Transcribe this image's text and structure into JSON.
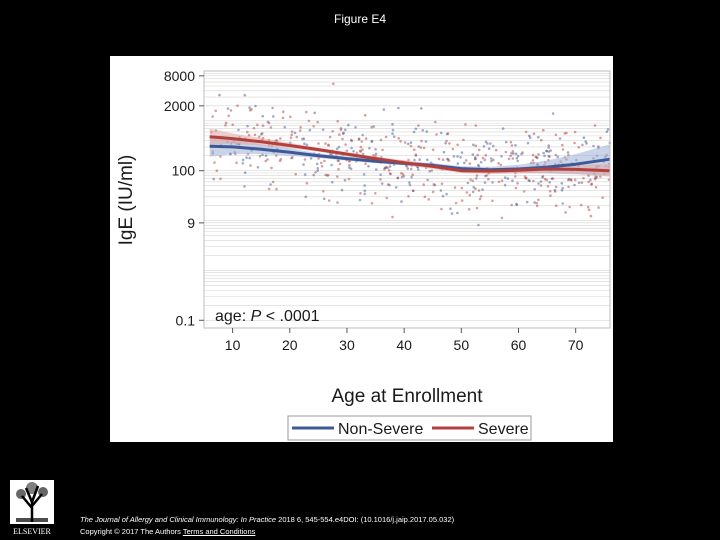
{
  "slide": {
    "title": "Figure E4",
    "citation_journal": "The Journal of Allergy and Clinical Immunology: In Practice",
    "citation_rest": " 2018 6, 545-554.e4DOI: (10.1016/j.jaip.2017.05.032)",
    "copyright": "Copyright © 2017 The Authors",
    "terms": "Terms and Conditions",
    "logo_text": "ELSEVIER"
  },
  "colors": {
    "non_severe": "#3d5a98",
    "severe": "#b3403c",
    "non_severe_band": "#9fb0d6",
    "severe_band": "#e0a7a4",
    "grid": "#d6d6d6"
  },
  "chart_data": {
    "type": "scatter",
    "title": "",
    "xlabel": "Age at Enrollment",
    "ylabel": "IgE (IU/ml)",
    "x_ticks": [
      10,
      20,
      30,
      40,
      50,
      60,
      70
    ],
    "y_ticks": [
      0.1,
      9,
      100,
      2000,
      8000
    ],
    "y_tick_labels": [
      "0.1",
      "9",
      "100",
      "2000",
      "8000"
    ],
    "y_scale": "log",
    "xlim": [
      5,
      76
    ],
    "ylim": [
      0.07,
      10000
    ],
    "grid": true,
    "annotation": {
      "prefix": "age: ",
      "p": "P",
      "rest": " < .0001"
    },
    "legend": {
      "position": "bottom",
      "entries": [
        "Non-Severe",
        "Severe"
      ]
    },
    "series": [
      {
        "name": "Non-Severe",
        "x": [
          6,
          10,
          15,
          20,
          25,
          30,
          35,
          40,
          45,
          50,
          55,
          60,
          65,
          70,
          76
        ],
        "y": [
          310,
          300,
          270,
          235,
          200,
          175,
          155,
          140,
          128,
          110,
          105,
          108,
          118,
          135,
          170
        ],
        "band_low": [
          190,
          215,
          215,
          200,
          180,
          160,
          142,
          128,
          115,
          98,
          92,
          90,
          88,
          85,
          80
        ],
        "band_high": [
          500,
          420,
          340,
          280,
          225,
          192,
          170,
          154,
          142,
          124,
          120,
          132,
          160,
          215,
          340
        ]
      },
      {
        "name": "Severe",
        "x": [
          6,
          10,
          15,
          20,
          25,
          30,
          35,
          40,
          45,
          50,
          55,
          60,
          65,
          70,
          76
        ],
        "y": [
          480,
          440,
          380,
          320,
          265,
          215,
          175,
          145,
          122,
          100,
          98,
          102,
          108,
          106,
          100
        ],
        "band_low": [
          330,
          350,
          320,
          280,
          240,
          195,
          158,
          130,
          108,
          90,
          86,
          88,
          90,
          86,
          76
        ],
        "band_high": [
          700,
          560,
          450,
          365,
          290,
          236,
          192,
          162,
          138,
          112,
          112,
          118,
          130,
          132,
          135
        ]
      }
    ]
  }
}
